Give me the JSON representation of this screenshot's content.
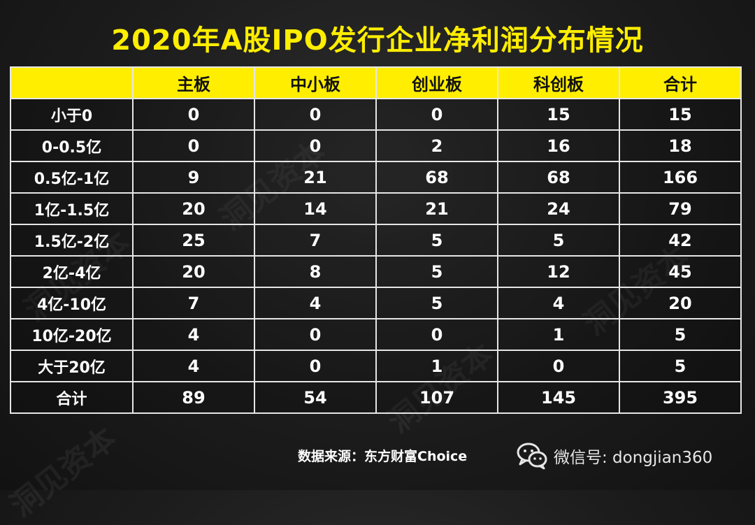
{
  "colors": {
    "title": "#ffee00",
    "header_bg": "#ffee00",
    "header_text": "#111111",
    "cell_text": "#ffffff",
    "border": "#e6e6e6"
  },
  "title": "2020年A股IPO发行企业净利润分布情况",
  "chart_data": {
    "type": "table",
    "title": "2020年A股IPO发行企业净利润分布情况",
    "columns": [
      "",
      "主板",
      "中小板",
      "创业板",
      "科创板",
      "合计"
    ],
    "rows": [
      {
        "label": "小于0",
        "values": [
          "0",
          "0",
          "0",
          "15",
          "15"
        ]
      },
      {
        "label": "0-0.5亿",
        "values": [
          "0",
          "0",
          "2",
          "16",
          "18"
        ]
      },
      {
        "label": "0.5亿-1亿",
        "values": [
          "9",
          "21",
          "68",
          "68",
          "166"
        ]
      },
      {
        "label": "1亿-1.5亿",
        "values": [
          "20",
          "14",
          "21",
          "24",
          "79"
        ]
      },
      {
        "label": "1.5亿-2亿",
        "values": [
          "25",
          "7",
          "5",
          "5",
          "42"
        ]
      },
      {
        "label": "2亿-4亿",
        "values": [
          "20",
          "8",
          "5",
          "12",
          "45"
        ]
      },
      {
        "label": "4亿-10亿",
        "values": [
          "7",
          "4",
          "5",
          "4",
          "20"
        ]
      },
      {
        "label": "10亿-20亿",
        "values": [
          "4",
          "0",
          "0",
          "1",
          "5"
        ]
      },
      {
        "label": "大于20亿",
        "values": [
          "4",
          "0",
          "1",
          "0",
          "5"
        ]
      },
      {
        "label": "合计",
        "values": [
          "89",
          "54",
          "107",
          "145",
          "395"
        ]
      }
    ]
  },
  "footer": {
    "source": "数据来源：东方财富Choice",
    "wechat": "微信号: dongjian360",
    "wechat_icon": "wechat-icon"
  },
  "watermark": "洞见资本"
}
